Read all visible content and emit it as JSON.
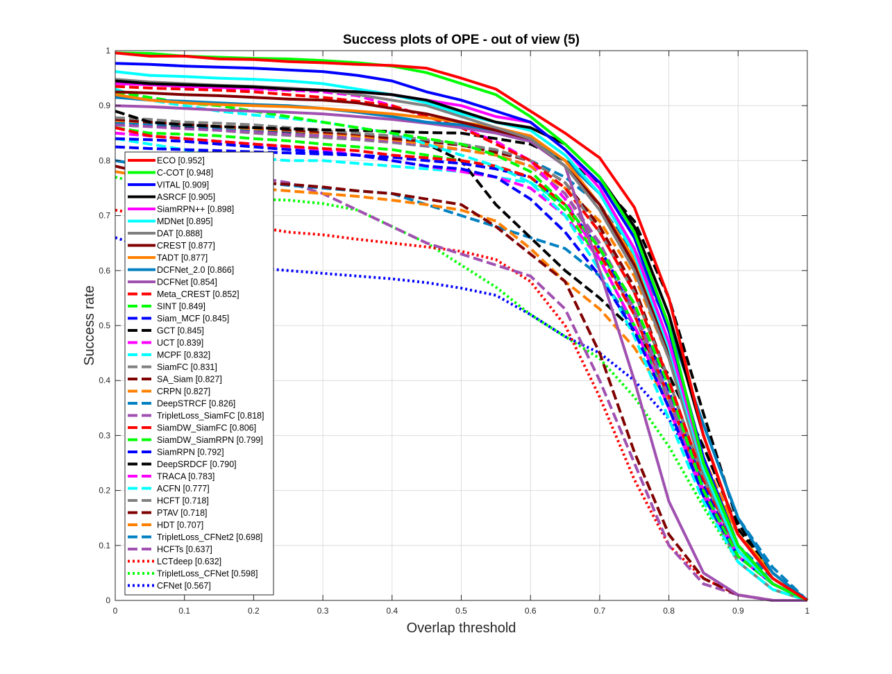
{
  "chart_data": {
    "type": "line",
    "title": "Success plots of OPE - out of view (5)",
    "xlabel": "Overlap threshold",
    "ylabel": "Success rate",
    "xlim": [
      0,
      1
    ],
    "ylim": [
      0,
      1
    ],
    "xticks": [
      0,
      0.1,
      0.2,
      0.3,
      0.4,
      0.5,
      0.6,
      0.7,
      0.8,
      0.9,
      1
    ],
    "xtick_labels": [
      "0",
      "0.1",
      "0.2",
      "0.3",
      "0.4",
      "0.5",
      "0.6",
      "0.7",
      "0.8",
      "0.9",
      "1"
    ],
    "yticks": [
      0,
      0.1,
      0.2,
      0.3,
      0.4,
      0.5,
      0.6,
      0.7,
      0.8,
      0.9,
      1
    ],
    "ytick_labels": [
      "0",
      "0.1",
      "0.2",
      "0.3",
      "0.4",
      "0.5",
      "0.6",
      "0.7",
      "0.8",
      "0.9",
      "1"
    ],
    "grid": true,
    "legend_position": "left",
    "x": [
      0,
      0.05,
      0.1,
      0.15,
      0.2,
      0.25,
      0.3,
      0.35,
      0.4,
      0.45,
      0.5,
      0.55,
      0.6,
      0.65,
      0.7,
      0.75,
      0.8,
      0.85,
      0.9,
      0.95,
      1
    ],
    "series": [
      {
        "name": "ECO [0.952]",
        "color": "#ff0000",
        "style": "solid",
        "values": [
          0.996,
          0.99,
          0.99,
          0.985,
          0.984,
          0.98,
          0.978,
          0.975,
          0.973,
          0.968,
          0.95,
          0.93,
          0.89,
          0.85,
          0.805,
          0.715,
          0.55,
          0.3,
          0.12,
          0.04,
          0
        ]
      },
      {
        "name": "C-COT [0.948]",
        "color": "#00ff00",
        "style": "solid",
        "values": [
          0.996,
          0.995,
          0.99,
          0.988,
          0.986,
          0.985,
          0.982,
          0.978,
          0.972,
          0.96,
          0.94,
          0.92,
          0.88,
          0.83,
          0.77,
          0.67,
          0.5,
          0.25,
          0.1,
          0.03,
          0
        ]
      },
      {
        "name": "VITAL [0.909]",
        "color": "#0000ff",
        "style": "solid",
        "values": [
          0.977,
          0.975,
          0.972,
          0.97,
          0.968,
          0.965,
          0.962,
          0.955,
          0.945,
          0.925,
          0.91,
          0.89,
          0.87,
          0.82,
          0.76,
          0.66,
          0.49,
          0.26,
          0.1,
          0.03,
          0
        ]
      },
      {
        "name": "ASRCF [0.905]",
        "color": "#000000",
        "style": "solid",
        "values": [
          0.945,
          0.94,
          0.938,
          0.936,
          0.934,
          0.93,
          0.928,
          0.925,
          0.92,
          0.91,
          0.89,
          0.87,
          0.86,
          0.83,
          0.77,
          0.68,
          0.52,
          0.3,
          0.12,
          0.04,
          0
        ]
      },
      {
        "name": "SiamRPN++ [0.898]",
        "color": "#ff00ff",
        "style": "solid",
        "values": [
          0.94,
          0.938,
          0.935,
          0.933,
          0.932,
          0.93,
          0.928,
          0.925,
          0.92,
          0.91,
          0.9,
          0.88,
          0.87,
          0.82,
          0.75,
          0.64,
          0.47,
          0.25,
          0.1,
          0.03,
          0
        ]
      },
      {
        "name": "MDNet [0.895]",
        "color": "#00ffff",
        "style": "solid",
        "values": [
          0.962,
          0.955,
          0.953,
          0.95,
          0.948,
          0.945,
          0.94,
          0.93,
          0.92,
          0.905,
          0.885,
          0.87,
          0.855,
          0.81,
          0.74,
          0.63,
          0.46,
          0.24,
          0.09,
          0.03,
          0
        ]
      },
      {
        "name": "DAT [0.888]",
        "color": "#808080",
        "style": "solid",
        "values": [
          0.948,
          0.943,
          0.94,
          0.937,
          0.935,
          0.932,
          0.928,
          0.92,
          0.91,
          0.9,
          0.88,
          0.86,
          0.84,
          0.79,
          0.71,
          0.6,
          0.44,
          0.23,
          0.09,
          0.03,
          0
        ]
      },
      {
        "name": "CREST [0.877]",
        "color": "#800000",
        "style": "solid",
        "values": [
          0.925,
          0.923,
          0.92,
          0.918,
          0.915,
          0.912,
          0.91,
          0.905,
          0.895,
          0.885,
          0.87,
          0.855,
          0.84,
          0.79,
          0.72,
          0.61,
          0.45,
          0.24,
          0.09,
          0.03,
          0
        ]
      },
      {
        "name": "TADT [0.877]",
        "color": "#ff8000",
        "style": "solid",
        "values": [
          0.92,
          0.91,
          0.905,
          0.902,
          0.9,
          0.898,
          0.895,
          0.89,
          0.885,
          0.878,
          0.87,
          0.86,
          0.845,
          0.8,
          0.72,
          0.62,
          0.46,
          0.25,
          0.1,
          0.03,
          0
        ]
      },
      {
        "name": "DCFNet_2.0 [0.866]",
        "color": "#0080c0",
        "style": "solid",
        "values": [
          0.915,
          0.91,
          0.908,
          0.905,
          0.902,
          0.9,
          0.895,
          0.888,
          0.88,
          0.87,
          0.865,
          0.855,
          0.84,
          0.8,
          0.74,
          0.64,
          0.5,
          0.32,
          0.15,
          0.05,
          0
        ]
      },
      {
        "name": "DCFNet [0.854]",
        "color": "#a050b0",
        "style": "solid",
        "values": [
          0.9,
          0.898,
          0.895,
          0.892,
          0.89,
          0.888,
          0.885,
          0.88,
          0.875,
          0.868,
          0.86,
          0.85,
          0.835,
          0.79,
          0.6,
          0.4,
          0.18,
          0.05,
          0.01,
          0,
          0
        ]
      },
      {
        "name": "Meta_CREST [0.852]",
        "color": "#ff0000",
        "style": "dashed",
        "values": [
          0.935,
          0.932,
          0.93,
          0.928,
          0.925,
          0.92,
          0.915,
          0.908,
          0.9,
          0.88,
          0.86,
          0.83,
          0.8,
          0.75,
          0.67,
          0.56,
          0.4,
          0.22,
          0.09,
          0.03,
          0
        ]
      },
      {
        "name": "SINT [0.849]",
        "color": "#00ff00",
        "style": "dashed",
        "values": [
          0.925,
          0.915,
          0.905,
          0.9,
          0.89,
          0.88,
          0.87,
          0.86,
          0.85,
          0.84,
          0.83,
          0.81,
          0.78,
          0.72,
          0.64,
          0.54,
          0.39,
          0.2,
          0.08,
          0.03,
          0
        ]
      },
      {
        "name": "Siam_MCF [0.845]",
        "color": "#0000ff",
        "style": "dashed",
        "values": [
          0.84,
          0.838,
          0.835,
          0.83,
          0.825,
          0.82,
          0.815,
          0.81,
          0.8,
          0.79,
          0.785,
          0.77,
          0.73,
          0.67,
          0.59,
          0.49,
          0.35,
          0.19,
          0.08,
          0.03,
          0
        ]
      },
      {
        "name": "GCT [0.845]",
        "color": "#000000",
        "style": "dashed",
        "values": [
          0.89,
          0.87,
          0.865,
          0.862,
          0.86,
          0.858,
          0.856,
          0.855,
          0.853,
          0.851,
          0.85,
          0.84,
          0.83,
          0.8,
          0.76,
          0.69,
          0.55,
          0.34,
          0.14,
          0.05,
          0
        ]
      },
      {
        "name": "UCT [0.839]",
        "color": "#ff00ff",
        "style": "dashed",
        "values": [
          0.945,
          0.94,
          0.935,
          0.932,
          0.93,
          0.928,
          0.925,
          0.918,
          0.9,
          0.88,
          0.86,
          0.835,
          0.8,
          0.73,
          0.62,
          0.5,
          0.35,
          0.2,
          0.08,
          0.03,
          0
        ]
      },
      {
        "name": "MCPF [0.832]",
        "color": "#00ffff",
        "style": "dashed",
        "values": [
          0.93,
          0.91,
          0.9,
          0.89,
          0.883,
          0.877,
          0.87,
          0.86,
          0.85,
          0.83,
          0.81,
          0.79,
          0.76,
          0.7,
          0.6,
          0.48,
          0.33,
          0.18,
          0.07,
          0.02,
          0
        ]
      },
      {
        "name": "SiamFC [0.831]",
        "color": "#808080",
        "style": "dashed",
        "values": [
          0.878,
          0.875,
          0.87,
          0.868,
          0.865,
          0.86,
          0.855,
          0.85,
          0.845,
          0.838,
          0.83,
          0.82,
          0.8,
          0.76,
          0.67,
          0.56,
          0.4,
          0.22,
          0.09,
          0.03,
          0
        ]
      },
      {
        "name": "SA_Siam [0.827]",
        "color": "#800000",
        "style": "dashed",
        "values": [
          0.875,
          0.87,
          0.866,
          0.862,
          0.86,
          0.856,
          0.852,
          0.848,
          0.84,
          0.835,
          0.828,
          0.815,
          0.8,
          0.76,
          0.68,
          0.57,
          0.4,
          0.22,
          0.09,
          0.03,
          0
        ]
      },
      {
        "name": "CRPN [0.827]",
        "color": "#ff8000",
        "style": "dashed",
        "values": [
          0.873,
          0.87,
          0.866,
          0.862,
          0.858,
          0.855,
          0.85,
          0.845,
          0.838,
          0.83,
          0.82,
          0.81,
          0.79,
          0.75,
          0.69,
          0.59,
          0.44,
          0.26,
          0.12,
          0.05,
          0
        ]
      },
      {
        "name": "DeepSTRCF [0.826]",
        "color": "#0080c0",
        "style": "dashed",
        "values": [
          0.87,
          0.867,
          0.864,
          0.86,
          0.857,
          0.854,
          0.85,
          0.846,
          0.84,
          0.835,
          0.828,
          0.818,
          0.8,
          0.77,
          0.72,
          0.63,
          0.5,
          0.32,
          0.15,
          0.06,
          0
        ]
      },
      {
        "name": "TripletLoss_SiamFC [0.818]",
        "color": "#a050b0",
        "style": "dashed",
        "values": [
          0.865,
          0.862,
          0.858,
          0.855,
          0.852,
          0.848,
          0.845,
          0.84,
          0.835,
          0.828,
          0.82,
          0.81,
          0.79,
          0.74,
          0.65,
          0.53,
          0.37,
          0.2,
          0.08,
          0.03,
          0
        ]
      },
      {
        "name": "SiamDW_SiamFC [0.806]",
        "color": "#ff0000",
        "style": "dashed",
        "values": [
          0.86,
          0.845,
          0.84,
          0.835,
          0.83,
          0.826,
          0.822,
          0.818,
          0.81,
          0.805,
          0.8,
          0.79,
          0.77,
          0.72,
          0.63,
          0.52,
          0.37,
          0.2,
          0.08,
          0.03,
          0
        ]
      },
      {
        "name": "SiamDW_SiamRPN [0.799]",
        "color": "#00ff00",
        "style": "dashed",
        "values": [
          0.86,
          0.85,
          0.848,
          0.845,
          0.84,
          0.836,
          0.83,
          0.825,
          0.82,
          0.81,
          0.8,
          0.79,
          0.77,
          0.71,
          0.62,
          0.5,
          0.35,
          0.19,
          0.08,
          0.03,
          0
        ]
      },
      {
        "name": "SiamRPN [0.792]",
        "color": "#0000ff",
        "style": "dashed",
        "values": [
          0.825,
          0.822,
          0.82,
          0.818,
          0.816,
          0.814,
          0.812,
          0.81,
          0.806,
          0.8,
          0.795,
          0.785,
          0.77,
          0.72,
          0.64,
          0.53,
          0.38,
          0.21,
          0.09,
          0.03,
          0
        ]
      },
      {
        "name": "DeepSRDCF [0.790]",
        "color": "#000000",
        "style": "dashed",
        "values": [
          0.865,
          0.862,
          0.86,
          0.858,
          0.855,
          0.853,
          0.85,
          0.846,
          0.84,
          0.83,
          0.8,
          0.72,
          0.66,
          0.6,
          0.55,
          0.49,
          0.41,
          0.28,
          0.13,
          0.05,
          0
        ]
      },
      {
        "name": "TRACA [0.783]",
        "color": "#ff00ff",
        "style": "dashed",
        "values": [
          0.85,
          0.845,
          0.84,
          0.835,
          0.83,
          0.825,
          0.82,
          0.81,
          0.8,
          0.79,
          0.78,
          0.77,
          0.75,
          0.7,
          0.62,
          0.5,
          0.35,
          0.19,
          0.08,
          0.03,
          0
        ]
      },
      {
        "name": "ACFN [0.777]",
        "color": "#00ffff",
        "style": "dashed",
        "values": [
          0.84,
          0.83,
          0.82,
          0.81,
          0.805,
          0.8,
          0.8,
          0.795,
          0.79,
          0.785,
          0.78,
          0.77,
          0.76,
          0.72,
          0.64,
          0.53,
          0.38,
          0.21,
          0.09,
          0.03,
          0
        ]
      },
      {
        "name": "HCFT [0.718]",
        "color": "#808080",
        "style": "dashed",
        "values": [
          0.87,
          0.865,
          0.86,
          0.855,
          0.85,
          0.846,
          0.842,
          0.838,
          0.833,
          0.826,
          0.82,
          0.81,
          0.79,
          0.74,
          0.64,
          0.52,
          0.36,
          0.19,
          0.07,
          0.02,
          0
        ]
      },
      {
        "name": "PTAV [0.718]",
        "color": "#800000",
        "style": "dashed",
        "values": [
          0.79,
          0.775,
          0.77,
          0.765,
          0.76,
          0.757,
          0.752,
          0.745,
          0.74,
          0.73,
          0.72,
          0.68,
          0.63,
          0.58,
          0.45,
          0.27,
          0.12,
          0.04,
          0.01,
          0,
          0
        ]
      },
      {
        "name": "HDT [0.707]",
        "color": "#ff8000",
        "style": "dashed",
        "values": [
          0.78,
          0.77,
          0.765,
          0.758,
          0.75,
          0.745,
          0.74,
          0.735,
          0.728,
          0.72,
          0.71,
          0.69,
          0.64,
          0.58,
          0.53,
          0.46,
          0.36,
          0.24,
          0.12,
          0.05,
          0
        ]
      },
      {
        "name": "TripletLoss_CFNet2 [0.698]",
        "color": "#0080c0",
        "style": "dashed",
        "values": [
          0.8,
          0.79,
          0.78,
          0.77,
          0.762,
          0.755,
          0.75,
          0.745,
          0.74,
          0.72,
          0.7,
          0.68,
          0.66,
          0.64,
          0.59,
          0.5,
          0.37,
          0.22,
          0.1,
          0.04,
          0
        ]
      },
      {
        "name": "HCFTs [0.637]",
        "color": "#a050b0",
        "style": "dashed",
        "values": [
          0.8,
          0.79,
          0.785,
          0.78,
          0.77,
          0.76,
          0.74,
          0.71,
          0.68,
          0.65,
          0.63,
          0.61,
          0.59,
          0.53,
          0.4,
          0.25,
          0.1,
          0.03,
          0.01,
          0,
          0
        ]
      },
      {
        "name": "LCTdeep [0.632]",
        "color": "#ff0000",
        "style": "dotted",
        "values": [
          0.71,
          0.7,
          0.69,
          0.685,
          0.68,
          0.67,
          0.665,
          0.657,
          0.65,
          0.643,
          0.635,
          0.62,
          0.58,
          0.5,
          0.37,
          0.22,
          0.1,
          0.04,
          0.01,
          0,
          0
        ]
      },
      {
        "name": "TripletLoss_CFNet [0.598]",
        "color": "#00ff00",
        "style": "dotted",
        "values": [
          0.77,
          0.755,
          0.745,
          0.735,
          0.73,
          0.728,
          0.722,
          0.71,
          0.68,
          0.65,
          0.61,
          0.57,
          0.52,
          0.48,
          0.44,
          0.37,
          0.28,
          0.17,
          0.07,
          0.02,
          0
        ]
      },
      {
        "name": "CFNet [0.567]",
        "color": "#0000ff",
        "style": "dotted",
        "values": [
          0.66,
          0.64,
          0.625,
          0.612,
          0.605,
          0.6,
          0.595,
          0.59,
          0.585,
          0.578,
          0.568,
          0.555,
          0.52,
          0.48,
          0.45,
          0.4,
          0.33,
          0.22,
          0.1,
          0.03,
          0
        ]
      }
    ]
  }
}
